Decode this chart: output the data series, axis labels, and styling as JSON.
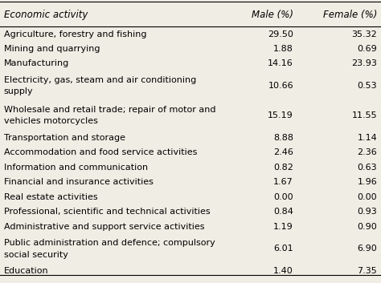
{
  "header": [
    "Economic activity",
    "Male (%)",
    "Female (%)"
  ],
  "rows": [
    [
      "Agriculture, forestry and fishing",
      "29.50",
      "35.32"
    ],
    [
      "Mining and quarrying",
      "1.88",
      "0.69"
    ],
    [
      "Manufacturing",
      "14.16",
      "23.93"
    ],
    [
      "Electricity, gas, steam and air conditioning supply",
      "10.66",
      "0.53"
    ],
    [
      "Wholesale and retail trade; repair of motor vehicles and motorcycles",
      "15.19",
      "11.55"
    ],
    [
      "Transportation and storage",
      "8.88",
      "1.14"
    ],
    [
      "Accommodation and food service activities",
      "2.46",
      "2.36"
    ],
    [
      "Information and communication",
      "0.82",
      "0.63"
    ],
    [
      "Financial and insurance activities",
      "1.67",
      "1.96"
    ],
    [
      "Real estate activities",
      "0.00",
      "0.00"
    ],
    [
      "Professional, scientific and technical activities",
      "0.84",
      "0.93"
    ],
    [
      "Administrative and support service activities",
      "1.19",
      "0.90"
    ],
    [
      "Public administration and defence; compulsory social security",
      "6.01",
      "6.90"
    ],
    [
      "Education",
      "1.40",
      "7.35"
    ]
  ],
  "bg_color": "#f0ede4",
  "text_color": "#000000",
  "font_size": 8.0,
  "header_font_size": 8.5,
  "max_chars_line1": 50
}
